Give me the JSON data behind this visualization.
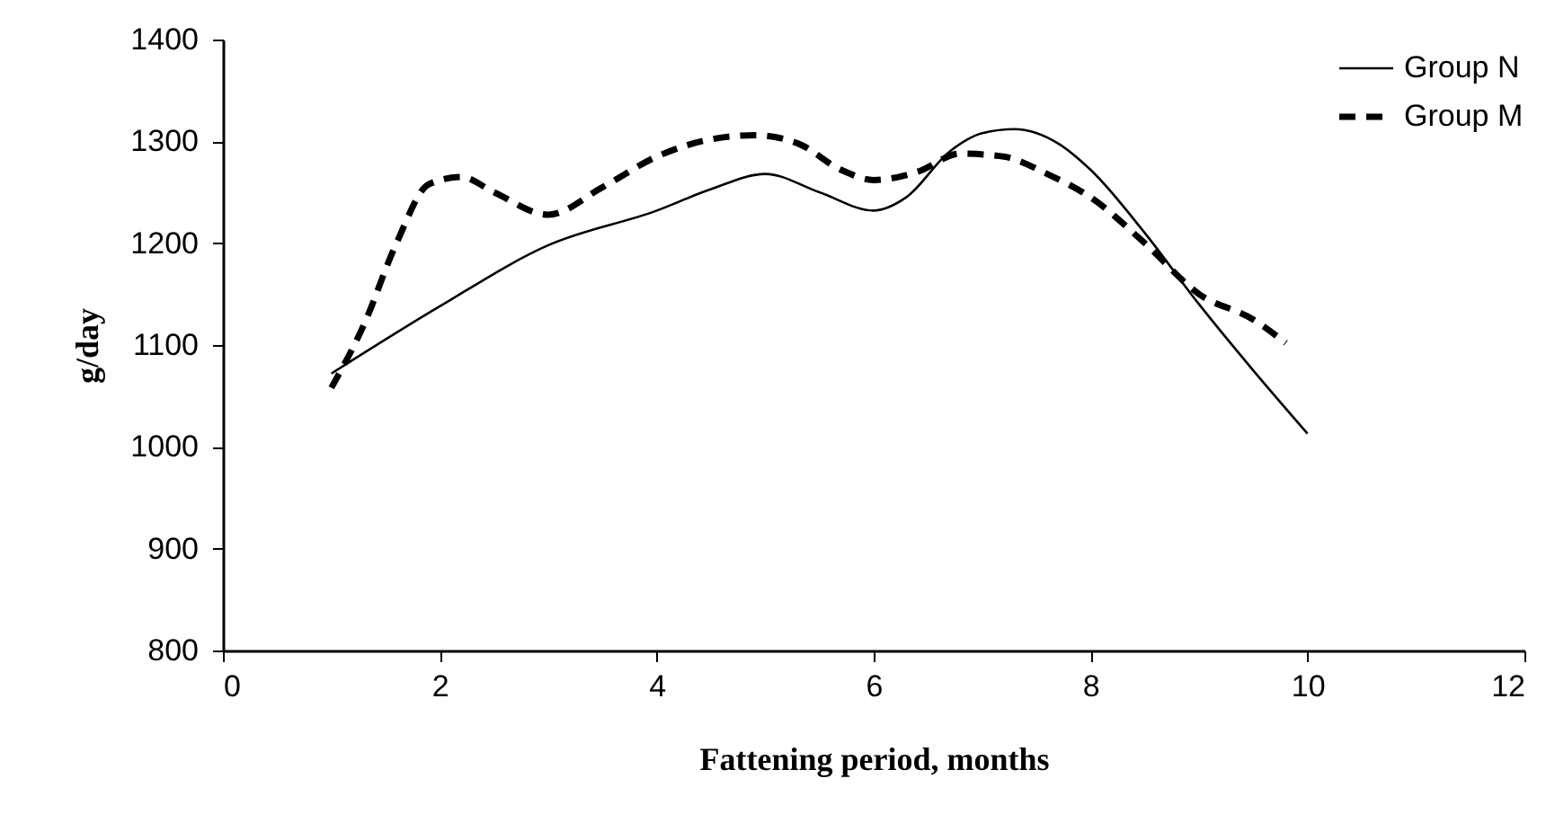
{
  "chart_data": {
    "type": "line",
    "xlabel": "Fattening period, months",
    "ylabel": "g/day",
    "xlim": [
      0,
      12
    ],
    "xticks": [
      0,
      2,
      4,
      6,
      8,
      10,
      12
    ],
    "ylim": [
      800,
      1400
    ],
    "yticks": [
      800,
      900,
      1000,
      1100,
      1200,
      1300,
      1400
    ],
    "grid": false,
    "legend": "top right",
    "marker": "none",
    "series": [
      {
        "name": "Group N",
        "color": "#000000",
        "line_style": "solid",
        "x": [
          1,
          2,
          3,
          4,
          4.5,
          5,
          5.5,
          6,
          6.3,
          6.7,
          7,
          7.3,
          7.7,
          8,
          8.5,
          9,
          9.5,
          10
        ],
        "values": [
          1072,
          1138,
          1198,
          1232,
          1253,
          1268,
          1250,
          1232,
          1245,
          1290,
          1308,
          1312,
          1298,
          1272,
          1210,
          1140,
          1075,
          1013
        ]
      },
      {
        "name": "Group M",
        "color": "#000000",
        "line_style": "dashed",
        "x": [
          1,
          1.3,
          1.6,
          1.9,
          2.2,
          2.5,
          3,
          3.5,
          4,
          4.5,
          4.9,
          5.3,
          5.7,
          6,
          6.4,
          6.8,
          7.2,
          7.6,
          8,
          8.5,
          9,
          9.5,
          9.8
        ],
        "values": [
          1058,
          1120,
          1200,
          1258,
          1265,
          1250,
          1228,
          1255,
          1285,
          1302,
          1306,
          1298,
          1272,
          1262,
          1270,
          1288,
          1285,
          1268,
          1245,
          1200,
          1150,
          1125,
          1102
        ]
      }
    ]
  }
}
